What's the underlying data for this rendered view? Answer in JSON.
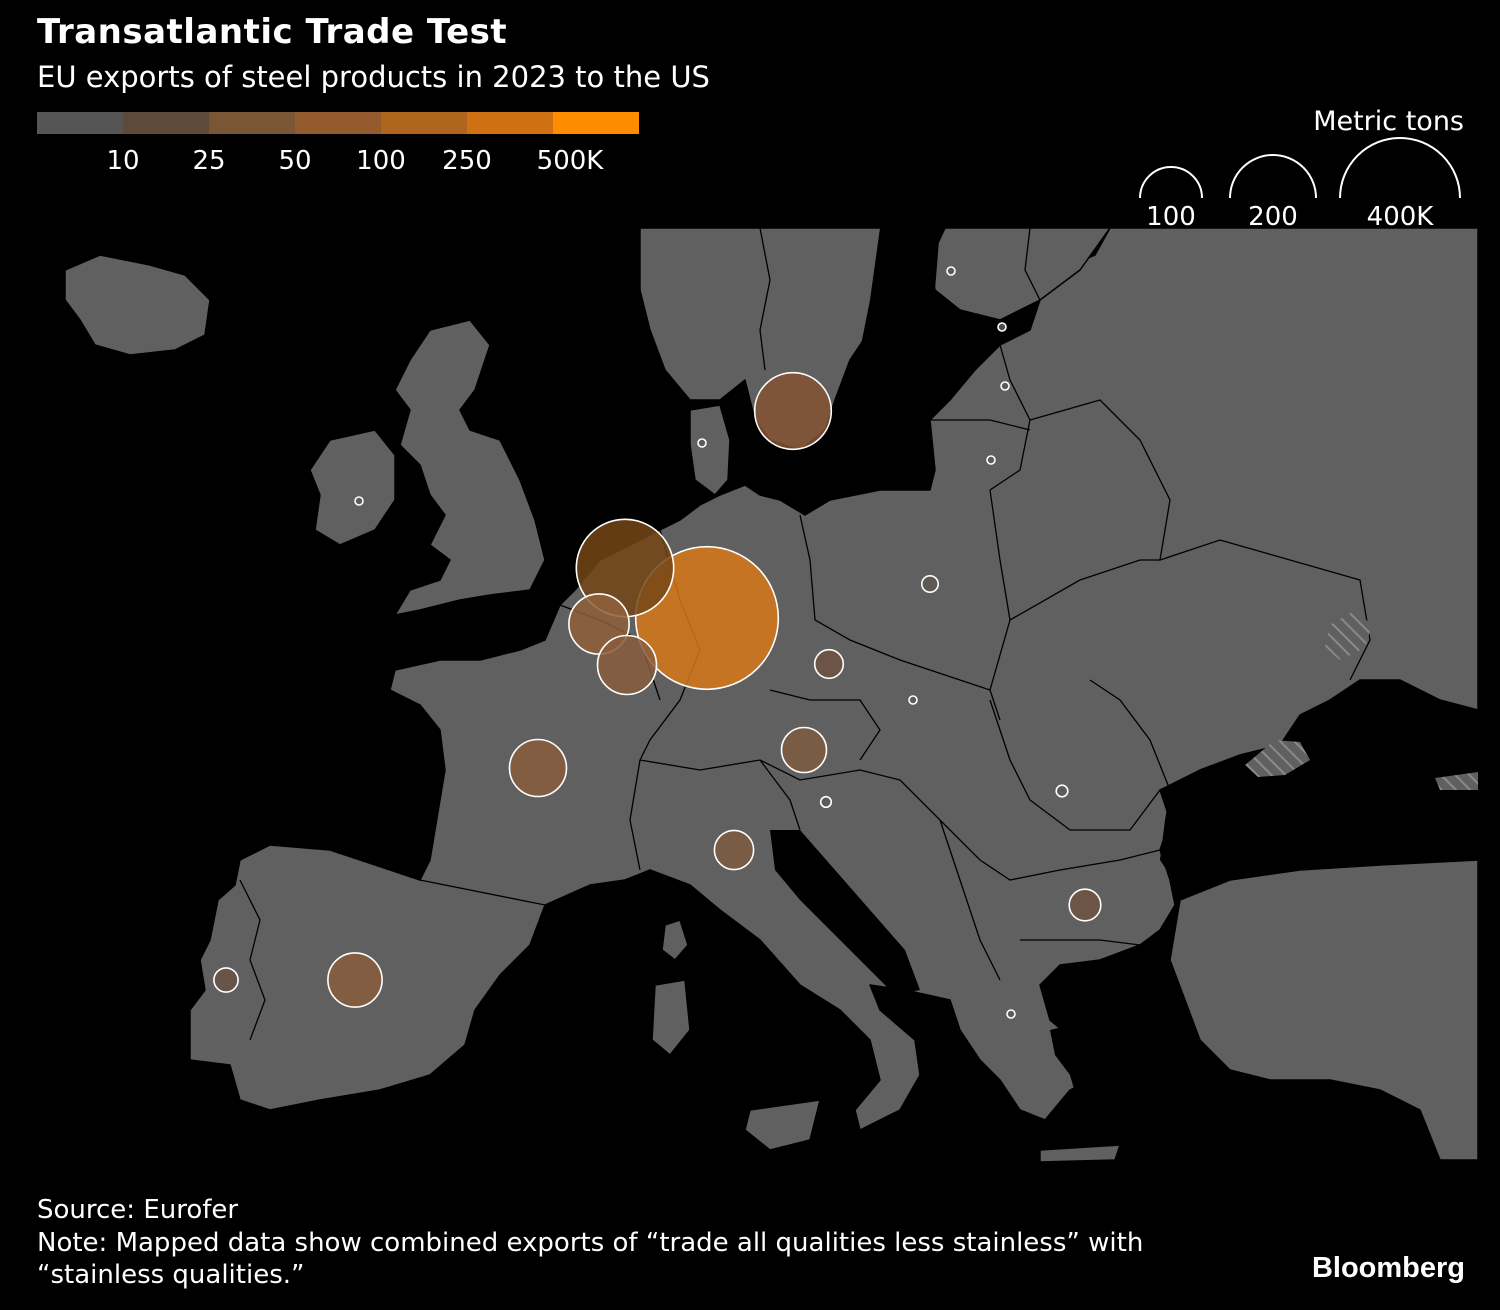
{
  "header": {
    "title": "Transatlantic Trade Test",
    "subtitle": "EU exports of steel products in 2023 to the US"
  },
  "color_legend": {
    "colors": [
      "#555555",
      "#5e4a3a",
      "#7a5637",
      "#945c2c",
      "#b0651f",
      "#cf7113",
      "#ff8c00"
    ],
    "ticks": [
      "10",
      "25",
      "50",
      "100",
      "250",
      "500K"
    ]
  },
  "size_legend": {
    "title": "Metric tons",
    "sizes": [
      {
        "label": "100",
        "value": 100000
      },
      {
        "label": "200",
        "value": 200000
      },
      {
        "label": "400K",
        "value": 400000
      }
    ]
  },
  "map": {
    "land_color": "#606060",
    "border_color": "#000000",
    "bubble_stroke": "#ffffff"
  },
  "chart_data": {
    "type": "proportional-symbol-map",
    "unit": "Metric tons",
    "color_scale": [
      "10",
      "25",
      "50",
      "100",
      "250",
      "500K"
    ],
    "bubbles": [
      {
        "value": 450000,
        "color": "#d77819"
      },
      {
        "value": 210000,
        "color": "#744618"
      },
      {
        "value": 130000,
        "color": "#855334"
      },
      {
        "value": 80000,
        "color": "#91603a"
      },
      {
        "value": 77000,
        "color": "#8a5d3c"
      },
      {
        "value": 72000,
        "color": "#8a5d3c"
      },
      {
        "value": 65000,
        "color": "#8a5d3c"
      },
      {
        "value": 45000,
        "color": "#7f5a40"
      },
      {
        "value": 34000,
        "color": "#7f5a40"
      },
      {
        "value": 22000,
        "color": "#6e5443"
      },
      {
        "value": 18000,
        "color": "#6e5443"
      },
      {
        "value": 13000,
        "color": "#6a5447"
      },
      {
        "value": 6000,
        "color": "#5f5852"
      },
      {
        "value": 3000,
        "color": "#5c5a58"
      },
      {
        "value": 2500,
        "color": "#5c5a58"
      },
      {
        "value": 1000,
        "color": "#5c5a58"
      },
      {
        "value": 1000,
        "color": "#5c5a58"
      },
      {
        "value": 1000,
        "color": "#5c5a58"
      },
      {
        "value": 1000,
        "color": "#5c5a58"
      },
      {
        "value": 800,
        "color": "#5c5a58"
      },
      {
        "value": 800,
        "color": "#5c5a58"
      },
      {
        "value": 800,
        "color": "#5c5a58"
      },
      {
        "value": 800,
        "color": "#5c5a58"
      }
    ]
  },
  "footer": {
    "source": "Source: Eurofer",
    "note": "Note: Mapped data show combined exports of “trade all qualities less stainless” with “stainless qualities.”",
    "brand": "Bloomberg"
  }
}
